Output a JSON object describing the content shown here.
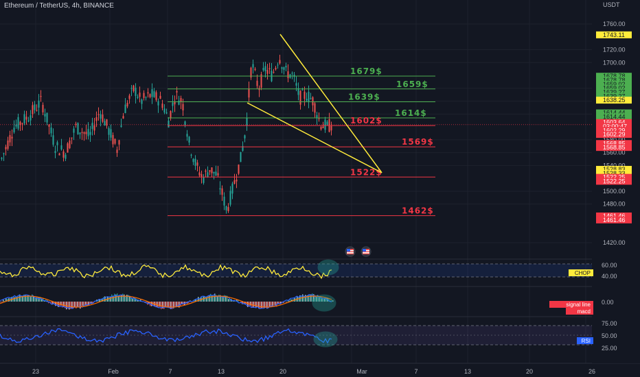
{
  "header": {
    "symbol_title": "Ethereum / TetherUS, 4h, BINANCE"
  },
  "price_axis": {
    "currency": "USDT",
    "ticks": [
      "1760.00",
      "1720.00",
      "1700.00",
      "1660.00",
      "1640.00",
      "1620.00",
      "1580.00",
      "1560.00",
      "1540.00",
      "1500.00",
      "1480.00",
      "1420.00"
    ],
    "ticks_values": [
      1760,
      1720,
      1700,
      1660,
      1640,
      1620,
      1580,
      1560,
      1540,
      1500,
      1480,
      1420
    ],
    "tags": [
      {
        "text": "1743.11",
        "value": 1743.11,
        "bg": "#ffeb3b",
        "fg": "#131722"
      },
      {
        "text": "1678.78",
        "value": 1678.78,
        "bg": "#4caf50",
        "fg": "#131722"
      },
      {
        "text": "1678.78",
        "value": 1672.6,
        "bg": "#4caf50",
        "fg": "#131722"
      },
      {
        "text": "1659.02",
        "value": 1666.4,
        "bg": "#4caf50",
        "fg": "#131722"
      },
      {
        "text": "1659.02",
        "value": 1660.2,
        "bg": "#4caf50",
        "fg": "#131722"
      },
      {
        "text": "1639.27",
        "value": 1654.0,
        "bg": "#4caf50",
        "fg": "#131722"
      },
      {
        "text": "1639.27",
        "value": 1647.8,
        "bg": "#4caf50",
        "fg": "#131722"
      },
      {
        "text": "1638.25",
        "value": 1641.6,
        "bg": "#ffeb3b",
        "fg": "#131722"
      },
      {
        "text": "1614.44",
        "value": 1621.8,
        "bg": "#4caf50",
        "fg": "#131722"
      },
      {
        "text": "1614.44",
        "value": 1615.6,
        "bg": "#4caf50",
        "fg": "#131722"
      },
      {
        "text": "1603.64",
        "value": 1606.8,
        "bg": "#f23645",
        "fg": "#ffffff"
      },
      {
        "text": "03:00:47",
        "value": 1600.6,
        "bg": "#f23645",
        "fg": "#ffffff"
      },
      {
        "text": "1602.29",
        "value": 1594.4,
        "bg": "#f23645",
        "fg": "#ffffff"
      },
      {
        "text": "1602.29",
        "value": 1588.2,
        "bg": "#f23645",
        "fg": "#ffffff"
      },
      {
        "text": "1568.85",
        "value": 1574.2,
        "bg": "#f23645",
        "fg": "#ffffff"
      },
      {
        "text": "1568.85",
        "value": 1568.0,
        "bg": "#f23645",
        "fg": "#ffffff"
      },
      {
        "text": "1528.83",
        "value": 1534.0,
        "bg": "#ffeb3b",
        "fg": "#131722"
      },
      {
        "text": "1528.33",
        "value": 1527.8,
        "bg": "#ffeb3b",
        "fg": "#131722"
      },
      {
        "text": "1522.25",
        "value": 1521.6,
        "bg": "#f23645",
        "fg": "#ffffff"
      },
      {
        "text": "1522.25",
        "value": 1515.4,
        "bg": "#f23645",
        "fg": "#ffffff"
      },
      {
        "text": "1461.46",
        "value": 1461.5,
        "bg": "#f23645",
        "fg": "#ffffff"
      },
      {
        "text": "1461.46",
        "value": 1455.3,
        "bg": "#f23645",
        "fg": "#ffffff"
      }
    ]
  },
  "levels": [
    {
      "label": "1679$",
      "value": 1679,
      "color": "#4caf50"
    },
    {
      "label": "1659$",
      "value": 1659,
      "color": "#4caf50"
    },
    {
      "label": "1639$",
      "value": 1639,
      "color": "#4caf50"
    },
    {
      "label": "1614$",
      "value": 1614,
      "color": "#4caf50"
    },
    {
      "label": "1602$",
      "value": 1602,
      "color": "#f23645"
    },
    {
      "label": "1569$",
      "value": 1569,
      "color": "#f23645"
    },
    {
      "label": "1522$",
      "value": 1522,
      "color": "#f23645"
    },
    {
      "label": "1462$",
      "value": 1462,
      "color": "#f23645"
    }
  ],
  "indicators": {
    "chop": {
      "tag": "CHOP",
      "ticks": [
        "60.00",
        "40.00"
      ],
      "tag_bg": "#ffeb3b",
      "tag_fg": "#131722",
      "line_color": "#ffeb3b"
    },
    "macd": {
      "tags": [
        "signal line",
        "macd"
      ],
      "ticks": [
        "0.00"
      ],
      "tag_bg": "#f23645",
      "tag_fg": "#ffffff"
    },
    "rsi": {
      "tag": "RSI",
      "ticks": [
        "75.00",
        "50.00",
        "25.00"
      ],
      "tag_bg": "#2962ff",
      "tag_fg": "#ffffff",
      "line_color": "#2962ff"
    }
  },
  "time_axis": {
    "labels": [
      "23",
      "Feb",
      "7",
      "13",
      "20",
      "Mar",
      "7",
      "13",
      "20",
      "26"
    ]
  },
  "colors": {
    "up": "#26a69a",
    "down": "#ef5350",
    "wedge": "#ffeb3b",
    "background": "#131722"
  },
  "icons": [
    "flag-us-icon",
    "flag-us-icon"
  ]
}
